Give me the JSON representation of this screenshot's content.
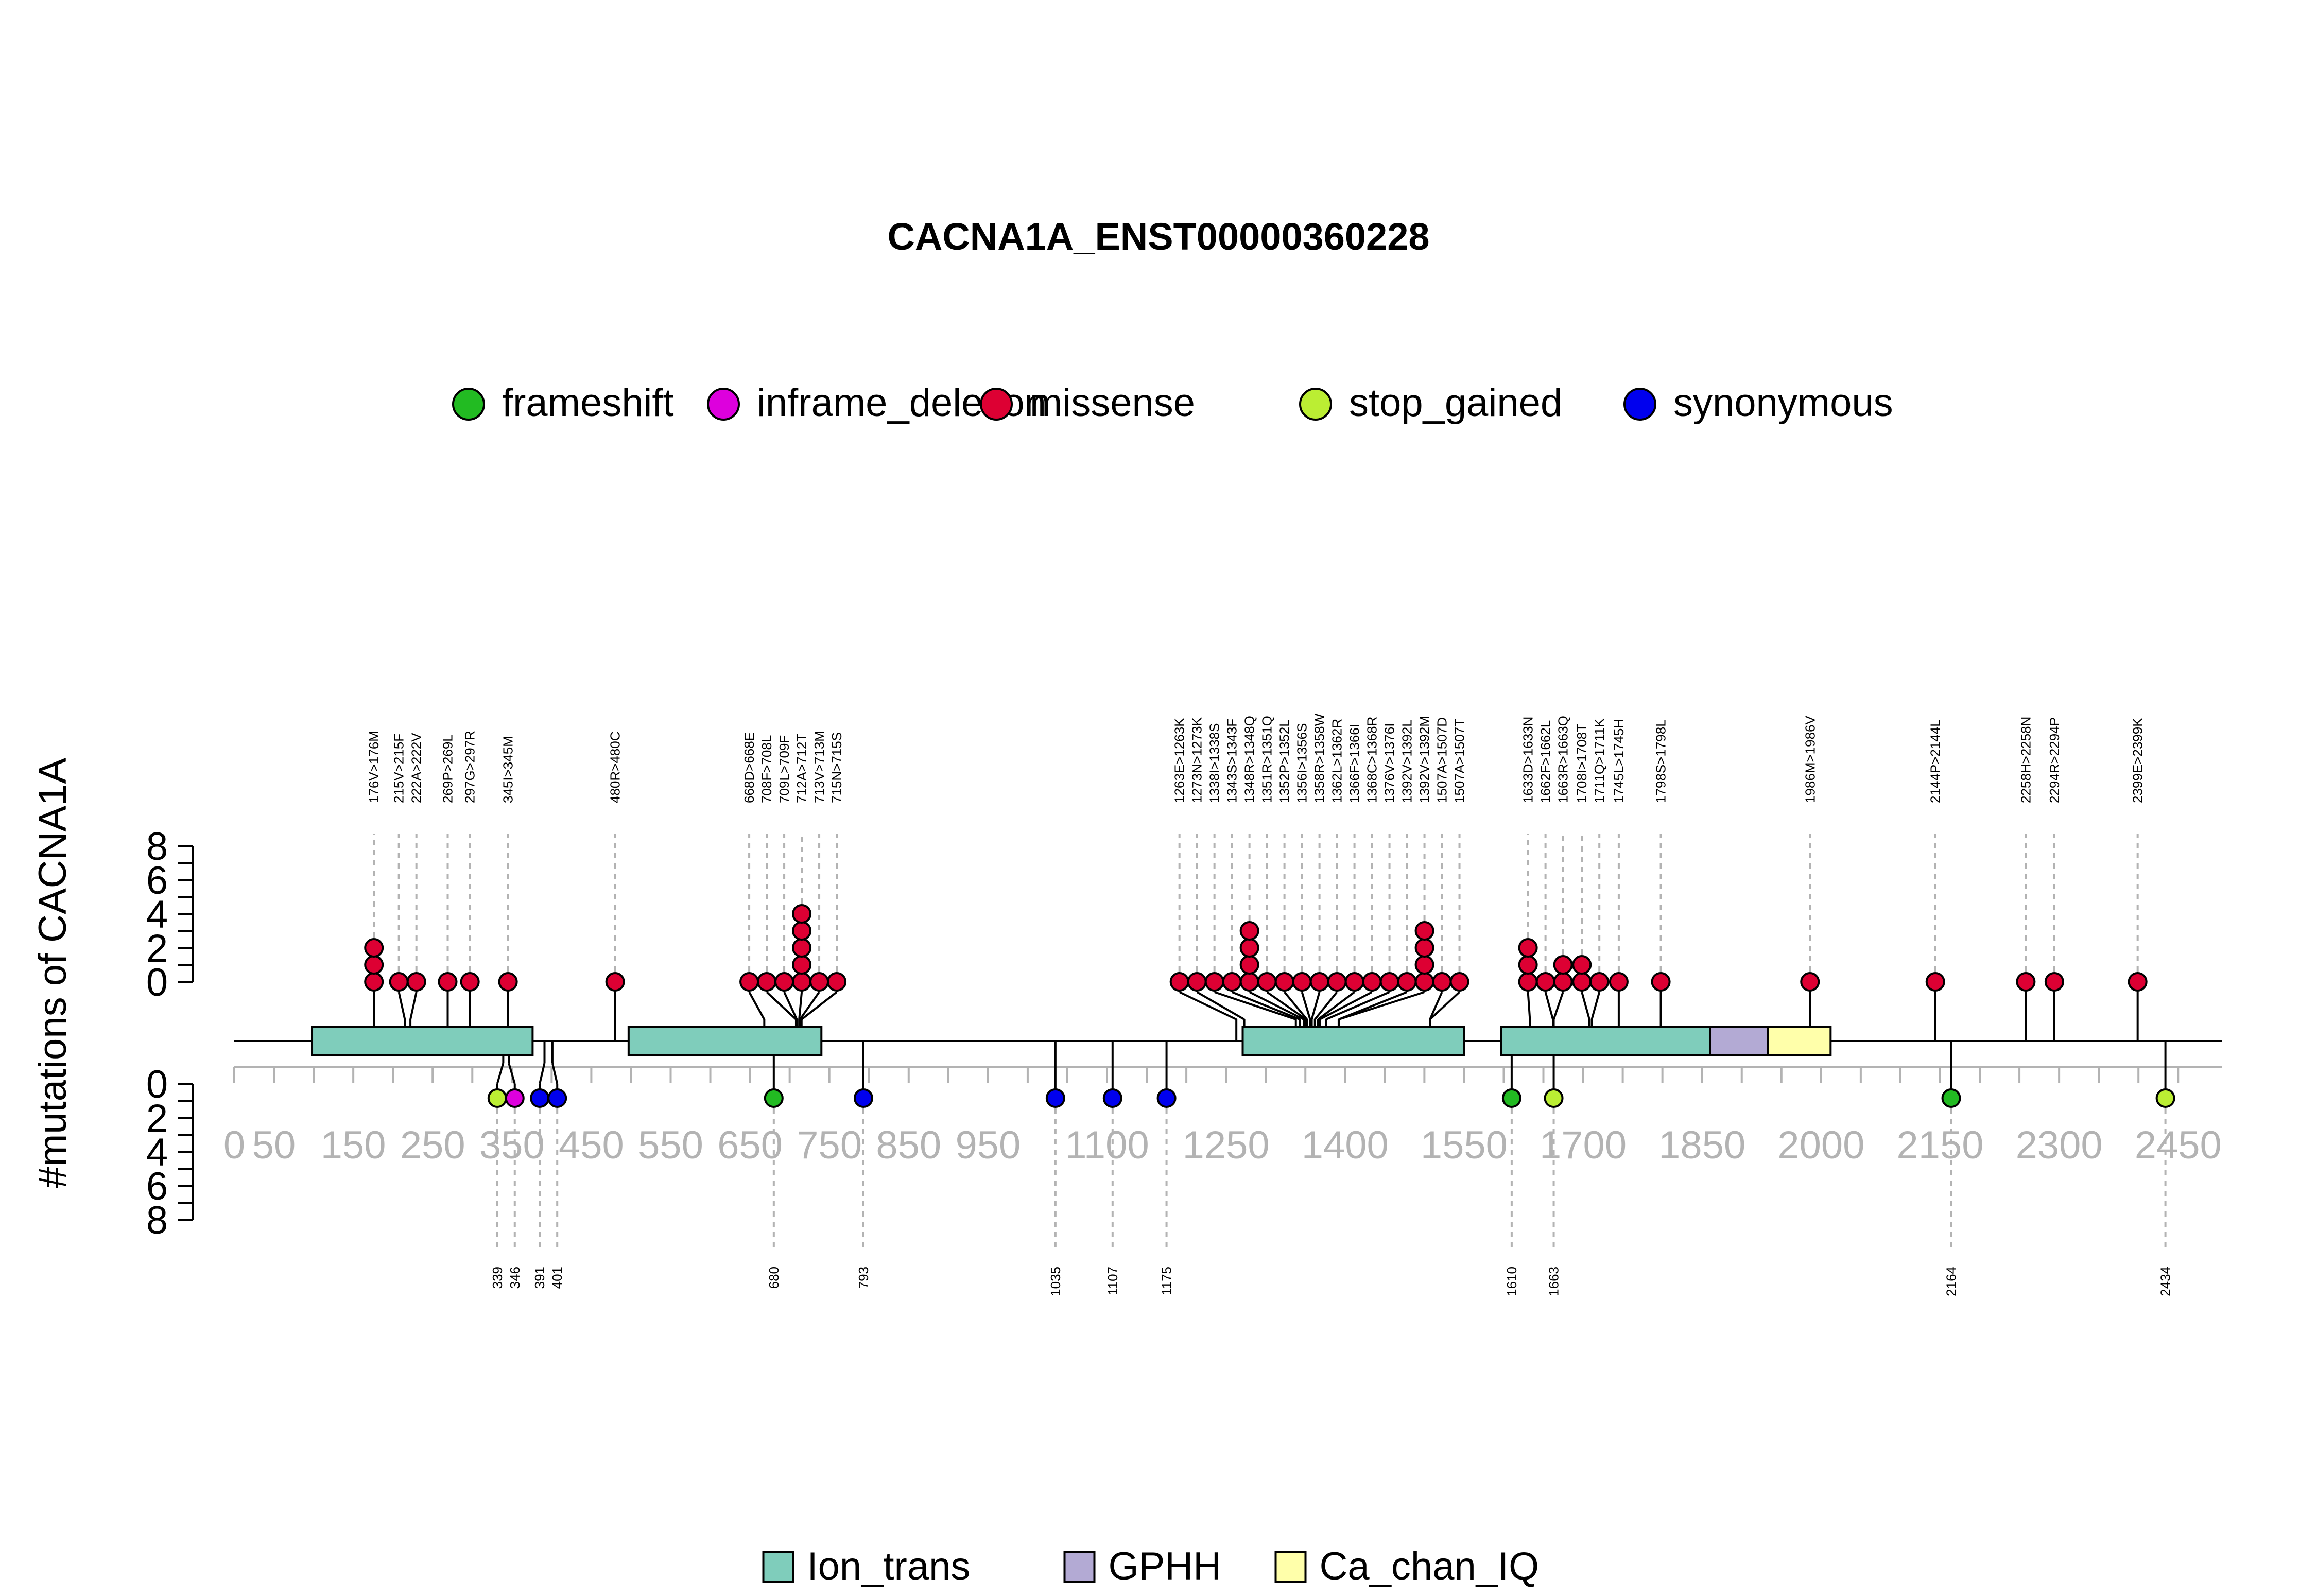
{
  "chart_data": {
    "type": "lollipop",
    "title": "CACNA1A_ENST00000360228",
    "ylabel": "#mutations of CACNA1A",
    "protein_length": 2505,
    "x_ticks": [
      0,
      50,
      150,
      250,
      350,
      450,
      550,
      650,
      750,
      850,
      950,
      1100,
      1250,
      1400,
      1550,
      1700,
      1850,
      2000,
      2150,
      2300,
      2450
    ],
    "y_ticks_top": [
      0,
      2,
      4,
      6,
      8
    ],
    "y_ticks_bottom": [
      0,
      2,
      4,
      6,
      8
    ],
    "legend": [
      {
        "name": "frameshift",
        "color": "#22bb22"
      },
      {
        "name": "inframe_deletion",
        "color": "#dd00dd"
      },
      {
        "name": "missense",
        "color": "#dd0033"
      },
      {
        "name": "stop_gained",
        "color": "#bbee33"
      },
      {
        "name": "synonymous",
        "color": "#0000ee"
      }
    ],
    "domains": [
      {
        "name": "Ion_trans",
        "start": 98,
        "end": 376,
        "color": "#7fcdbb"
      },
      {
        "name": "Ion_trans",
        "start": 497,
        "end": 740,
        "color": "#7fcdbb"
      },
      {
        "name": "Ion_trans",
        "start": 1271,
        "end": 1550,
        "color": "#7fcdbb"
      },
      {
        "name": "Ion_trans",
        "start": 1597,
        "end": 1860,
        "color": "#7fcdbb"
      },
      {
        "name": "GPHH",
        "start": 1860,
        "end": 1933,
        "color": "#b3aad4"
      },
      {
        "name": "Ca_chan_IQ",
        "start": 1933,
        "end": 2012,
        "color": "#ffffaa"
      }
    ],
    "domain_legend": [
      {
        "name": "Ion_trans",
        "color": "#7fcdbb"
      },
      {
        "name": "GPHH",
        "color": "#b3aad4"
      },
      {
        "name": "Ca_chan_IQ",
        "color": "#ffffaa"
      }
    ],
    "top_mutations": [
      {
        "label": "176V>176M",
        "pos": 176,
        "count": 3,
        "type": "missense"
      },
      {
        "label": "215V>215F",
        "pos": 215,
        "count": 1,
        "type": "missense"
      },
      {
        "label": "222A>222V",
        "pos": 222,
        "count": 1,
        "type": "missense"
      },
      {
        "label": "269P>269L",
        "pos": 269,
        "count": 1,
        "type": "missense"
      },
      {
        "label": "297G>297R",
        "pos": 297,
        "count": 1,
        "type": "missense"
      },
      {
        "label": "345I>345M",
        "pos": 345,
        "count": 1,
        "type": "missense"
      },
      {
        "label": "480R>480C",
        "pos": 480,
        "count": 1,
        "type": "missense"
      },
      {
        "label": "668D>668E",
        "pos": 668,
        "count": 1,
        "type": "missense"
      },
      {
        "label": "708F>708L",
        "pos": 708,
        "count": 1,
        "type": "missense"
      },
      {
        "label": "709L>709F",
        "pos": 709,
        "count": 1,
        "type": "missense"
      },
      {
        "label": "712A>712T",
        "pos": 712,
        "count": 5,
        "type": "missense"
      },
      {
        "label": "713V>713M",
        "pos": 713,
        "count": 1,
        "type": "missense"
      },
      {
        "label": "715N>715S",
        "pos": 715,
        "count": 1,
        "type": "missense"
      },
      {
        "label": "1263E>1263K",
        "pos": 1263,
        "count": 1,
        "type": "missense"
      },
      {
        "label": "1273N>1273K",
        "pos": 1273,
        "count": 1,
        "type": "missense"
      },
      {
        "label": "1338I>1338S",
        "pos": 1338,
        "count": 1,
        "type": "missense"
      },
      {
        "label": "1343S>1343F",
        "pos": 1343,
        "count": 1,
        "type": "missense"
      },
      {
        "label": "1348R>1348Q",
        "pos": 1348,
        "count": 4,
        "type": "missense"
      },
      {
        "label": "1351R>1351Q",
        "pos": 1351,
        "count": 1,
        "type": "missense"
      },
      {
        "label": "1352P>1352L",
        "pos": 1352,
        "count": 1,
        "type": "missense"
      },
      {
        "label": "1356I>1356S",
        "pos": 1356,
        "count": 1,
        "type": "missense"
      },
      {
        "label": "1358R>1358W",
        "pos": 1358,
        "count": 1,
        "type": "missense"
      },
      {
        "label": "1362L>1362R",
        "pos": 1362,
        "count": 1,
        "type": "missense"
      },
      {
        "label": "1366F>1366I",
        "pos": 1366,
        "count": 1,
        "type": "missense"
      },
      {
        "label": "1368C>1368R",
        "pos": 1368,
        "count": 1,
        "type": "missense"
      },
      {
        "label": "1376V>1376I",
        "pos": 1376,
        "count": 1,
        "type": "missense"
      },
      {
        "label": "1392V>1392L",
        "pos": 1392,
        "count": 1,
        "type": "missense"
      },
      {
        "label": "1392V>1392M",
        "pos": 1392,
        "count": 4,
        "type": "missense"
      },
      {
        "label": "1507A>1507D",
        "pos": 1507,
        "count": 1,
        "type": "missense"
      },
      {
        "label": "1507A>1507T",
        "pos": 1507,
        "count": 1,
        "type": "missense"
      },
      {
        "label": "1633D>1633N",
        "pos": 1633,
        "count": 3,
        "type": "missense"
      },
      {
        "label": "1662F>1662L",
        "pos": 1662,
        "count": 1,
        "type": "missense"
      },
      {
        "label": "1663R>1663Q",
        "pos": 1663,
        "count": 2,
        "type": "missense"
      },
      {
        "label": "1708I>1708T",
        "pos": 1708,
        "count": 2,
        "type": "missense"
      },
      {
        "label": "1711Q>1711K",
        "pos": 1711,
        "count": 1,
        "type": "missense"
      },
      {
        "label": "1745L>1745H",
        "pos": 1745,
        "count": 1,
        "type": "missense"
      },
      {
        "label": "1798S>1798L",
        "pos": 1798,
        "count": 1,
        "type": "missense"
      },
      {
        "label": "1986M>1986V",
        "pos": 1986,
        "count": 1,
        "type": "missense"
      },
      {
        "label": "2144P>2144L",
        "pos": 2144,
        "count": 1,
        "type": "missense"
      },
      {
        "label": "2258H>2258N",
        "pos": 2258,
        "count": 1,
        "type": "missense"
      },
      {
        "label": "2294R>2294P",
        "pos": 2294,
        "count": 1,
        "type": "missense"
      },
      {
        "label": "2399E>2399K",
        "pos": 2399,
        "count": 1,
        "type": "missense"
      }
    ],
    "bottom_mutations": [
      {
        "label": "339",
        "pos": 339,
        "count": 1,
        "type": "stop_gained"
      },
      {
        "label": "346",
        "pos": 346,
        "count": 1,
        "type": "inframe_deletion"
      },
      {
        "label": "391",
        "pos": 391,
        "count": 1,
        "type": "synonymous"
      },
      {
        "label": "401",
        "pos": 401,
        "count": 1,
        "type": "synonymous"
      },
      {
        "label": "680",
        "pos": 680,
        "count": 1,
        "type": "frameshift"
      },
      {
        "label": "793",
        "pos": 793,
        "count": 1,
        "type": "synonymous"
      },
      {
        "label": "1035",
        "pos": 1035,
        "count": 1,
        "type": "synonymous"
      },
      {
        "label": "1107",
        "pos": 1107,
        "count": 1,
        "type": "synonymous"
      },
      {
        "label": "1175",
        "pos": 1175,
        "count": 1,
        "type": "synonymous"
      },
      {
        "label": "1610",
        "pos": 1610,
        "count": 1,
        "type": "frameshift"
      },
      {
        "label": "1663",
        "pos": 1663,
        "count": 1,
        "type": "stop_gained"
      },
      {
        "label": "2164",
        "pos": 2164,
        "count": 1,
        "type": "frameshift"
      },
      {
        "label": "2434",
        "pos": 2434,
        "count": 1,
        "type": "stop_gained"
      }
    ]
  }
}
